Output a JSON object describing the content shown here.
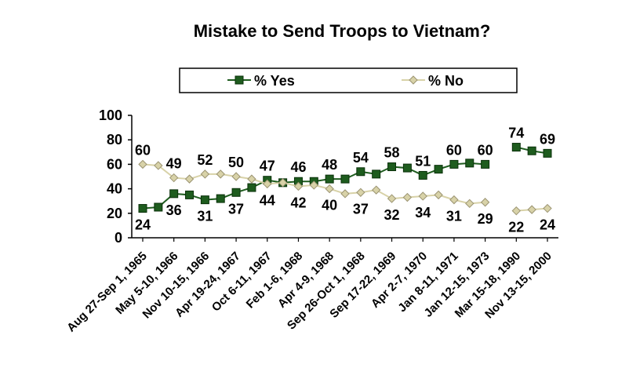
{
  "chart_data": {
    "type": "line",
    "title": "Mistake to Send Troops to Vietnam?",
    "xlabel": "",
    "ylabel": "",
    "ylim": [
      0,
      100
    ],
    "yticks": [
      0,
      20,
      40,
      60,
      80,
      100
    ],
    "legend_position": "top",
    "grid": false,
    "x_tick_labels": [
      {
        "i": 0,
        "label": "Aug 27-Sep 1, 1965"
      },
      {
        "i": 2,
        "label": "May 5-10, 1966"
      },
      {
        "i": 4,
        "label": "Nov 10-15, 1966"
      },
      {
        "i": 6,
        "label": "Apr 19-24, 1967"
      },
      {
        "i": 8,
        "label": "Oct 6-11, 1967"
      },
      {
        "i": 10,
        "label": "Feb 1-6, 1968"
      },
      {
        "i": 12,
        "label": "Apr 4-9, 1968"
      },
      {
        "i": 14,
        "label": "Sep 26-Oct 1, 1968"
      },
      {
        "i": 16,
        "label": "Sep 17-22, 1969"
      },
      {
        "i": 18,
        "label": "Apr 2-7, 1970"
      },
      {
        "i": 20,
        "label": "Jan 8-11, 1971"
      },
      {
        "i": 22,
        "label": "Jan 12-15, 1973"
      },
      {
        "i": 24,
        "label": "Mar 15-18, 1990"
      },
      {
        "i": 26,
        "label": "Nov 13-15, 2000"
      }
    ],
    "series": [
      {
        "name": "% Yes",
        "color": "#1e5c1e",
        "marker": "square",
        "segments": [
          [
            {
              "i": 0,
              "y": 24,
              "label": "24"
            },
            {
              "i": 1,
              "y": 25
            },
            {
              "i": 2,
              "y": 36,
              "label": "36"
            },
            {
              "i": 3,
              "y": 35
            },
            {
              "i": 4,
              "y": 31,
              "label": "31"
            },
            {
              "i": 5,
              "y": 32
            },
            {
              "i": 6,
              "y": 37,
              "label": "37"
            },
            {
              "i": 7,
              "y": 41
            },
            {
              "i": 8,
              "y": 47,
              "label": "47"
            },
            {
              "i": 9,
              "y": 45
            },
            {
              "i": 10,
              "y": 46,
              "label": "46"
            },
            {
              "i": 11,
              "y": 46
            },
            {
              "i": 12,
              "y": 48,
              "label": "48"
            },
            {
              "i": 13,
              "y": 48
            },
            {
              "i": 14,
              "y": 54,
              "label": "54"
            },
            {
              "i": 15,
              "y": 52
            },
            {
              "i": 16,
              "y": 58,
              "label": "58"
            },
            {
              "i": 17,
              "y": 57
            },
            {
              "i": 18,
              "y": 51,
              "label": "51"
            },
            {
              "i": 19,
              "y": 56
            },
            {
              "i": 20,
              "y": 60,
              "label": "60"
            },
            {
              "i": 21,
              "y": 61
            },
            {
              "i": 22,
              "y": 60,
              "label": "60"
            }
          ],
          [
            {
              "i": 24,
              "y": 74,
              "label": "74"
            },
            {
              "i": 25,
              "y": 71
            },
            {
              "i": 26,
              "y": 69,
              "label": "69"
            }
          ]
        ]
      },
      {
        "name": "% No",
        "color": "#d8d2a8",
        "marker": "diamond",
        "segments": [
          [
            {
              "i": 0,
              "y": 60,
              "label": "60"
            },
            {
              "i": 1,
              "y": 59
            },
            {
              "i": 2,
              "y": 49,
              "label": "49"
            },
            {
              "i": 3,
              "y": 48
            },
            {
              "i": 4,
              "y": 52,
              "label": "52"
            },
            {
              "i": 5,
              "y": 52
            },
            {
              "i": 6,
              "y": 50,
              "label": "50"
            },
            {
              "i": 7,
              "y": 48
            },
            {
              "i": 8,
              "y": 44,
              "label": "44"
            },
            {
              "i": 9,
              "y": 45
            },
            {
              "i": 10,
              "y": 42,
              "label": "42"
            },
            {
              "i": 11,
              "y": 43
            },
            {
              "i": 12,
              "y": 40,
              "label": "40"
            },
            {
              "i": 13,
              "y": 36
            },
            {
              "i": 14,
              "y": 37,
              "label": "37"
            },
            {
              "i": 15,
              "y": 39
            },
            {
              "i": 16,
              "y": 32,
              "label": "32"
            },
            {
              "i": 17,
              "y": 33
            },
            {
              "i": 18,
              "y": 34,
              "label": "34"
            },
            {
              "i": 19,
              "y": 35
            },
            {
              "i": 20,
              "y": 31,
              "label": "31"
            },
            {
              "i": 21,
              "y": 28
            },
            {
              "i": 22,
              "y": 29,
              "label": "29"
            }
          ],
          [
            {
              "i": 24,
              "y": 22,
              "label": "22"
            },
            {
              "i": 25,
              "y": 23
            },
            {
              "i": 26,
              "y": 24,
              "label": "24"
            }
          ]
        ]
      }
    ]
  }
}
